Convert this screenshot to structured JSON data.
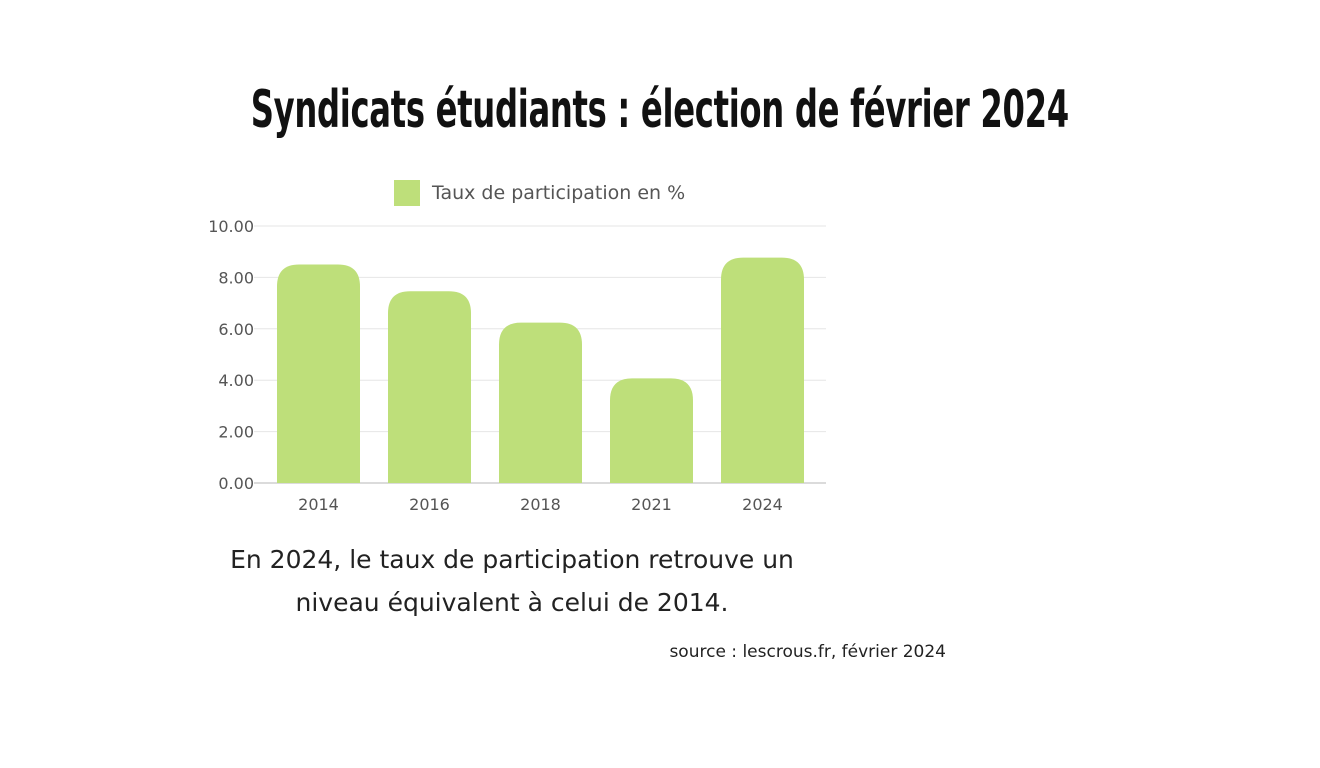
{
  "title": "Syndicats étudiants : élection de février 2024",
  "chart_data": {
    "type": "bar",
    "categories": [
      "2014",
      "2016",
      "2018",
      "2021",
      "2024"
    ],
    "series": [
      {
        "name": "Taux de participation en %",
        "values": [
          8.5,
          7.46,
          6.24,
          4.07,
          8.77
        ],
        "color": "#bedf7a"
      }
    ],
    "yticks": [
      "0.00",
      "2.00",
      "4.00",
      "6.00",
      "8.00",
      "10.00"
    ],
    "ylim": [
      0,
      10
    ],
    "legend": "top-center",
    "grid": true
  },
  "caption": {
    "line1": "En 2024, le taux de participation retrouve un",
    "line2": "niveau équivalent à celui de 2014."
  },
  "source": "source : lescrous.fr, février 2024"
}
